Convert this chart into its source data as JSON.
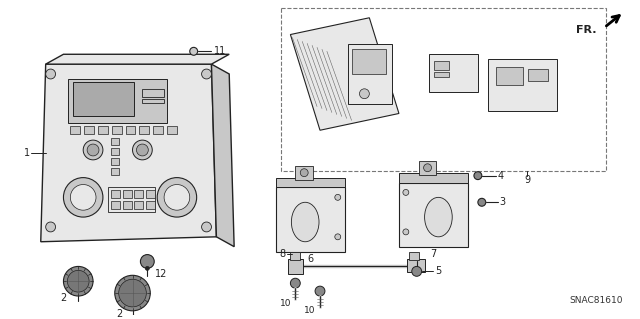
{
  "bg_color": "#ffffff",
  "lc": "#222222",
  "diagram_code": "SNAC81610",
  "gray_fill": "#c8c8c8",
  "light_fill": "#e8e8e8",
  "dark_fill": "#888888"
}
